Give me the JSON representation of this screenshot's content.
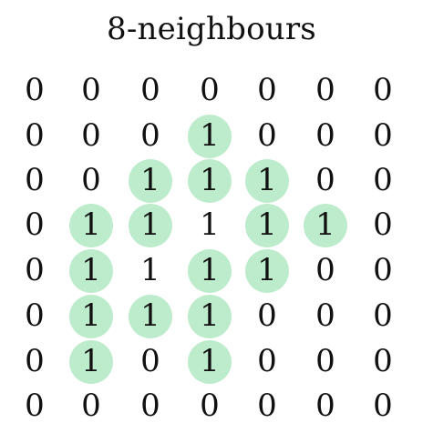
{
  "title": "8-neighbours",
  "highlight_color": "#bdeccc",
  "grid": [
    [
      0,
      0,
      0,
      0,
      0,
      0,
      0
    ],
    [
      0,
      0,
      0,
      1,
      0,
      0,
      0
    ],
    [
      0,
      0,
      1,
      1,
      1,
      0,
      0
    ],
    [
      0,
      1,
      1,
      1,
      1,
      1,
      0
    ],
    [
      0,
      1,
      1,
      1,
      1,
      0,
      0
    ],
    [
      0,
      1,
      1,
      1,
      0,
      0,
      0
    ],
    [
      0,
      1,
      0,
      1,
      0,
      0,
      0
    ],
    [
      0,
      0,
      0,
      0,
      0,
      0,
      0
    ]
  ],
  "highlighted": [
    [
      0,
      0,
      0,
      0,
      0,
      0,
      0
    ],
    [
      0,
      0,
      0,
      1,
      0,
      0,
      0
    ],
    [
      0,
      0,
      1,
      1,
      1,
      0,
      0
    ],
    [
      0,
      1,
      1,
      0,
      1,
      1,
      0
    ],
    [
      0,
      1,
      0,
      1,
      1,
      0,
      0
    ],
    [
      0,
      1,
      1,
      1,
      0,
      0,
      0
    ],
    [
      0,
      1,
      0,
      1,
      0,
      0,
      0
    ],
    [
      0,
      0,
      0,
      0,
      0,
      0,
      0
    ]
  ]
}
